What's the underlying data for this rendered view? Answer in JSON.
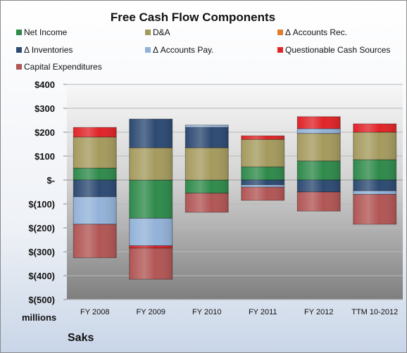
{
  "chart_data": {
    "type": "bar",
    "stacked": true,
    "title": "Free Cash Flow Components",
    "categories": [
      "FY 2008",
      "FY 2009",
      "FY 2010",
      "FY 2011",
      "FY 2012",
      "TTM 10-2012"
    ],
    "ylim": [
      -500,
      400
    ],
    "yticks": [
      400,
      300,
      200,
      100,
      0,
      -100,
      -200,
      -300,
      -400,
      -500
    ],
    "ytick_labels": [
      "$400",
      "$300",
      "$200",
      "$100",
      "$-",
      "$(100)",
      "$(200)",
      "$(300)",
      "$(400)",
      "$(500)"
    ],
    "y_unit_label": "millions",
    "grid": true,
    "legend_position": "top",
    "series": [
      {
        "name": "Net Income",
        "color": "#2f8a4b",
        "values": [
          50,
          -160,
          -55,
          55,
          80,
          85
        ]
      },
      {
        "name": "D&A",
        "color": "#a59a5e",
        "values": [
          130,
          135,
          135,
          115,
          115,
          115
        ]
      },
      {
        "name": "Δ Accounts Rec.",
        "color": "#e07c2c",
        "values": [
          0,
          0,
          0,
          0,
          0,
          0
        ]
      },
      {
        "name": "Δ Inventories",
        "color": "#2d4a72",
        "values": [
          -70,
          120,
          85,
          -20,
          -50,
          -45
        ]
      },
      {
        "name": "Δ Accounts Pay.",
        "color": "#93b2d8",
        "values": [
          -115,
          -115,
          10,
          -10,
          20,
          -15
        ]
      },
      {
        "name": "Questionable Cash Sources",
        "color": "#e02428",
        "values": [
          40,
          -10,
          0,
          15,
          50,
          35
        ]
      },
      {
        "name": "Capital Expenditures",
        "color": "#b15655",
        "values": [
          -140,
          -130,
          -80,
          -55,
          -80,
          -125
        ]
      }
    ]
  },
  "footer": {
    "units": "millions",
    "company": "Saks"
  }
}
